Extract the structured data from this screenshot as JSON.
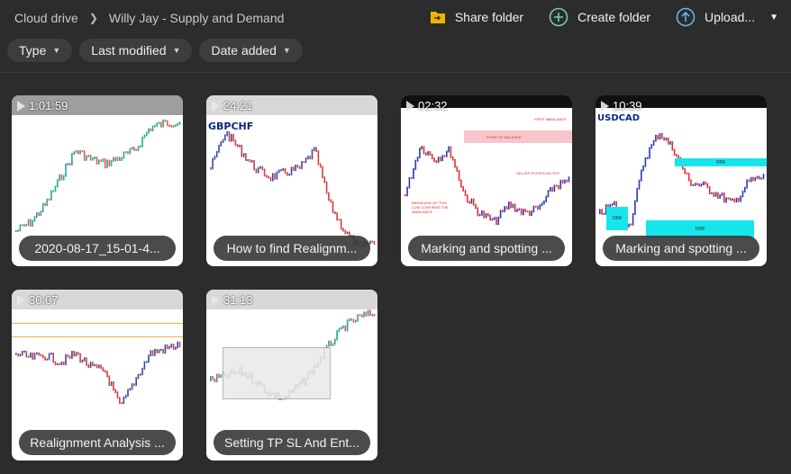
{
  "breadcrumb": {
    "root": "Cloud drive",
    "current": "Willy Jay - Supply and Demand"
  },
  "actions": {
    "share": "Share folder",
    "create": "Create folder",
    "upload": "Upload..."
  },
  "colors": {
    "share_icon": "#f0b400",
    "create_icon": "#6fcfb0",
    "upload_icon": "#5ab8e8"
  },
  "filters": [
    {
      "label": "Type"
    },
    {
      "label": "Last modified"
    },
    {
      "label": "Date added"
    }
  ],
  "videos": [
    {
      "duration": "1:01:59",
      "title": "2020-08-17_15-01-4..."
    },
    {
      "duration": "24:21",
      "title": "How to find Realignm...",
      "chart_label": "GBPCHF"
    },
    {
      "duration": "02:32",
      "title": "Marking and spotting ...",
      "notes": [
        "FIRST IMBALANCE",
        "POINT OF BALANCE",
        "SELLER EXCEED BUYER",
        "BREAKAGE OF THIS LOW CONFIRMS THE IMBALANCE"
      ]
    },
    {
      "duration": "10:39",
      "title": "Marking and spotting ...",
      "chart_label": "USDCAD",
      "zones": [
        "RBR",
        "DBR",
        "DBR"
      ]
    },
    {
      "duration": "30:07",
      "title": "Realignment Analysis ..."
    },
    {
      "duration": "31:13",
      "title": "Setting TP SL And Ent..."
    }
  ]
}
